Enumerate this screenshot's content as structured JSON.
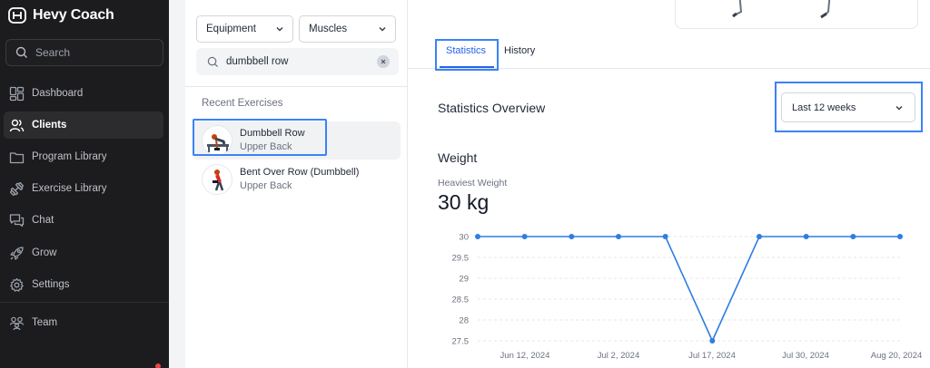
{
  "sidebar": {
    "brand": "Hevy Coach",
    "search_placeholder": "Search",
    "items": [
      {
        "label": "Dashboard",
        "icon": "dashboard-icon"
      },
      {
        "label": "Clients",
        "icon": "users-icon",
        "active": true
      },
      {
        "label": "Program Library",
        "icon": "folder-icon"
      },
      {
        "label": "Exercise Library",
        "icon": "dumbbell-icon"
      },
      {
        "label": "Chat",
        "icon": "chat-icon"
      },
      {
        "label": "Grow",
        "icon": "rocket-icon"
      },
      {
        "label": "Settings",
        "icon": "gear-icon"
      },
      {
        "label": "Team",
        "icon": "team-icon"
      }
    ]
  },
  "exercise_panel": {
    "equipment_filter": "Equipment",
    "muscles_filter": "Muscles",
    "search_value": "dumbbell row",
    "section_title": "Recent Exercises",
    "exercises": [
      {
        "name": "Dumbbell Row",
        "muscle": "Upper Back",
        "selected": true
      },
      {
        "name": "Bent Over Row (Dumbbell)",
        "muscle": "Upper Back",
        "selected": false
      }
    ]
  },
  "detail": {
    "tabs": [
      {
        "label": "Statistics",
        "active": true
      },
      {
        "label": "History",
        "active": false
      }
    ],
    "overview_title": "Statistics Overview",
    "range_select": "Last 12 weeks",
    "weight_title": "Weight",
    "heaviest_label": "Heaviest Weight",
    "heaviest_value": "30 kg"
  },
  "colors": {
    "accent": "#2563eb",
    "highlight": "#3b82f6",
    "sidebar_bg": "#1c1c1e",
    "line": "#2f7de1"
  },
  "chart_data": {
    "type": "line",
    "x_tick_labels": [
      "Jun 12, 2024",
      "Jul 2, 2024",
      "Jul 17, 2024",
      "Jul 30, 2024",
      "Aug 20, 2024"
    ],
    "y_ticks": [
      30,
      29.5,
      29,
      28.5,
      28,
      27.5
    ],
    "ylim": [
      27.5,
      30
    ],
    "values": [
      30,
      30,
      30,
      30,
      30,
      27.5,
      30,
      30,
      30,
      30
    ],
    "grid": true,
    "grid_style": "dashed",
    "legend": "none"
  }
}
